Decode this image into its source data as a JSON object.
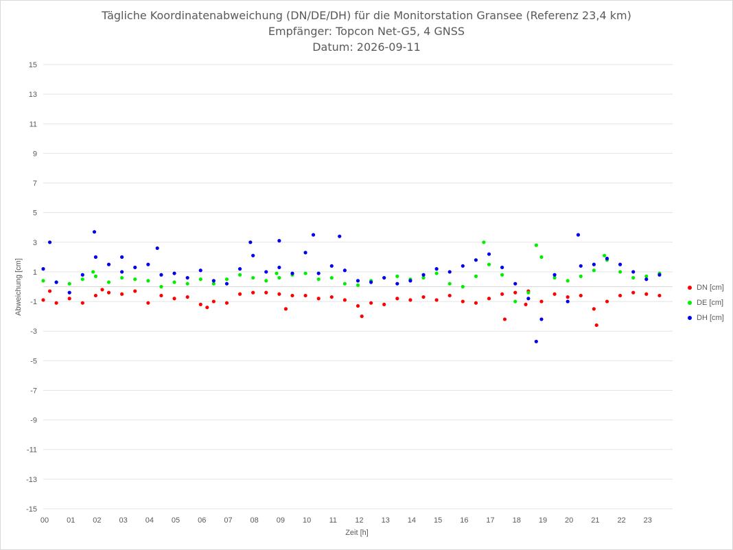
{
  "chart_data": {
    "type": "scatter",
    "title": "Tägliche Koordinatenabweichung (DN/DE/DH) für die Monitorstation Gransee (Referenz 23,4 km)",
    "subtitle": "Empfänger: Topcon Net-G5, 4 GNSS",
    "date_line": "Datum: 2026-09-11",
    "xlabel": "Zeit [h]",
    "ylabel": "Abweichung [cm]",
    "xlim": [
      0,
      24
    ],
    "ylim": [
      -15,
      15
    ],
    "x_tick_labels": [
      "00",
      "01",
      "02",
      "03",
      "04",
      "05",
      "06",
      "07",
      "08",
      "09",
      "10",
      "11",
      "12",
      "13",
      "14",
      "15",
      "16",
      "17",
      "18",
      "19",
      "20",
      "21",
      "22",
      "23"
    ],
    "y_ticks": [
      15,
      13,
      11,
      9,
      7,
      5,
      3,
      1,
      -1,
      -3,
      -5,
      -7,
      -9,
      -11,
      -13,
      -15
    ],
    "y_tick_labels": [
      "15",
      "13",
      "11",
      "9",
      "7",
      "5",
      "3",
      "1",
      "-1",
      "-3",
      "-5",
      "-7",
      "-9",
      "-11",
      "-13",
      "-15"
    ],
    "grid": "horizontal",
    "legend_position": "right",
    "series": [
      {
        "name": "DN [cm]",
        "color": "#ff0000",
        "x": [
          0.0,
          0.5,
          1.0,
          1.5,
          2.0,
          2.5,
          3.0,
          3.5,
          4.0,
          4.5,
          5.0,
          5.5,
          6.0,
          6.5,
          7.0,
          7.5,
          8.0,
          8.5,
          9.0,
          9.5,
          10.0,
          10.5,
          11.0,
          11.5,
          12.0,
          12.5,
          13.0,
          13.5,
          14.0,
          14.5,
          15.0,
          15.5,
          16.0,
          16.5,
          17.0,
          17.5,
          18.0,
          18.5,
          19.0,
          19.5,
          20.0,
          20.5,
          21.0,
          21.5,
          22.0,
          22.5,
          23.0,
          23.5,
          0.25,
          2.25,
          6.25,
          9.25,
          12.15,
          17.6,
          18.4,
          21.1
        ],
        "y": [
          -0.9,
          -1.1,
          -0.8,
          -1.1,
          -0.6,
          -0.4,
          -0.5,
          -0.3,
          -1.1,
          -0.6,
          -0.8,
          -0.7,
          -1.2,
          -1.0,
          -1.1,
          -0.5,
          -0.4,
          -0.4,
          -0.5,
          -0.6,
          -0.6,
          -0.8,
          -0.7,
          -0.9,
          -1.3,
          -1.1,
          -1.2,
          -0.8,
          -0.9,
          -0.7,
          -0.9,
          -0.6,
          -1.0,
          -1.1,
          -0.8,
          -0.5,
          -0.4,
          -0.3,
          -1.0,
          -0.5,
          -0.7,
          -0.6,
          -1.5,
          -1.0,
          -0.6,
          -0.4,
          -0.5,
          -0.6,
          -0.3,
          -0.2,
          -1.4,
          -1.5,
          -2.0,
          -2.2,
          -1.2,
          -2.6
        ]
      },
      {
        "name": "DE [cm]",
        "color": "#00ee00",
        "x": [
          0.0,
          0.5,
          1.0,
          1.5,
          2.0,
          2.5,
          3.0,
          3.5,
          4.0,
          4.5,
          5.0,
          5.5,
          6.0,
          6.5,
          7.0,
          7.5,
          8.0,
          8.5,
          9.0,
          9.5,
          10.0,
          10.5,
          11.0,
          11.5,
          12.0,
          12.5,
          13.0,
          13.5,
          14.0,
          14.5,
          15.0,
          15.5,
          16.0,
          16.5,
          17.0,
          17.5,
          18.0,
          18.5,
          19.0,
          19.5,
          20.0,
          20.5,
          21.0,
          21.5,
          22.0,
          22.5,
          23.0,
          23.5,
          1.9,
          8.9,
          16.8,
          18.8,
          21.4
        ],
        "y": [
          0.4,
          0.3,
          0.2,
          0.5,
          0.7,
          0.3,
          0.6,
          0.5,
          0.4,
          0.0,
          0.3,
          0.2,
          0.5,
          0.2,
          0.5,
          0.8,
          0.6,
          0.4,
          0.6,
          0.8,
          0.9,
          0.5,
          0.6,
          0.2,
          0.1,
          0.4,
          0.6,
          0.7,
          0.5,
          0.6,
          0.9,
          0.2,
          0.0,
          0.7,
          1.5,
          0.8,
          -1.0,
          -0.4,
          2.0,
          0.6,
          0.4,
          0.7,
          1.1,
          1.8,
          1.0,
          0.6,
          0.7,
          0.9,
          1.0,
          0.9,
          3.0,
          2.8,
          2.1
        ]
      },
      {
        "name": "DH [cm]",
        "color": "#0000ee",
        "x": [
          0.0,
          0.5,
          1.0,
          1.5,
          2.0,
          2.5,
          3.0,
          3.5,
          4.0,
          4.5,
          5.0,
          5.5,
          6.0,
          6.5,
          7.0,
          7.5,
          8.0,
          8.5,
          9.0,
          9.5,
          10.0,
          10.5,
          11.0,
          11.5,
          12.0,
          12.5,
          13.0,
          13.5,
          14.0,
          14.5,
          15.0,
          15.5,
          16.0,
          16.5,
          17.0,
          17.5,
          18.0,
          18.5,
          19.0,
          19.5,
          20.0,
          20.5,
          21.0,
          21.5,
          22.0,
          22.5,
          23.0,
          23.5,
          0.25,
          1.95,
          3.0,
          4.35,
          7.9,
          9.0,
          10.3,
          11.3,
          18.8,
          20.4
        ],
        "y": [
          1.2,
          0.3,
          -0.4,
          0.8,
          2.0,
          1.5,
          1.0,
          1.3,
          1.5,
          0.8,
          0.9,
          0.6,
          1.1,
          0.4,
          0.2,
          1.2,
          2.1,
          1.0,
          1.3,
          0.9,
          2.3,
          0.9,
          1.4,
          1.1,
          0.4,
          0.3,
          0.6,
          0.2,
          0.4,
          0.8,
          1.2,
          1.0,
          1.4,
          1.8,
          2.2,
          1.3,
          0.2,
          -0.8,
          -2.2,
          0.8,
          -1.0,
          1.4,
          1.5,
          1.9,
          1.5,
          1.0,
          0.5,
          0.8,
          3.0,
          3.7,
          2.0,
          2.6,
          3.0,
          3.1,
          3.5,
          3.4,
          -3.7,
          3.5
        ]
      }
    ]
  }
}
